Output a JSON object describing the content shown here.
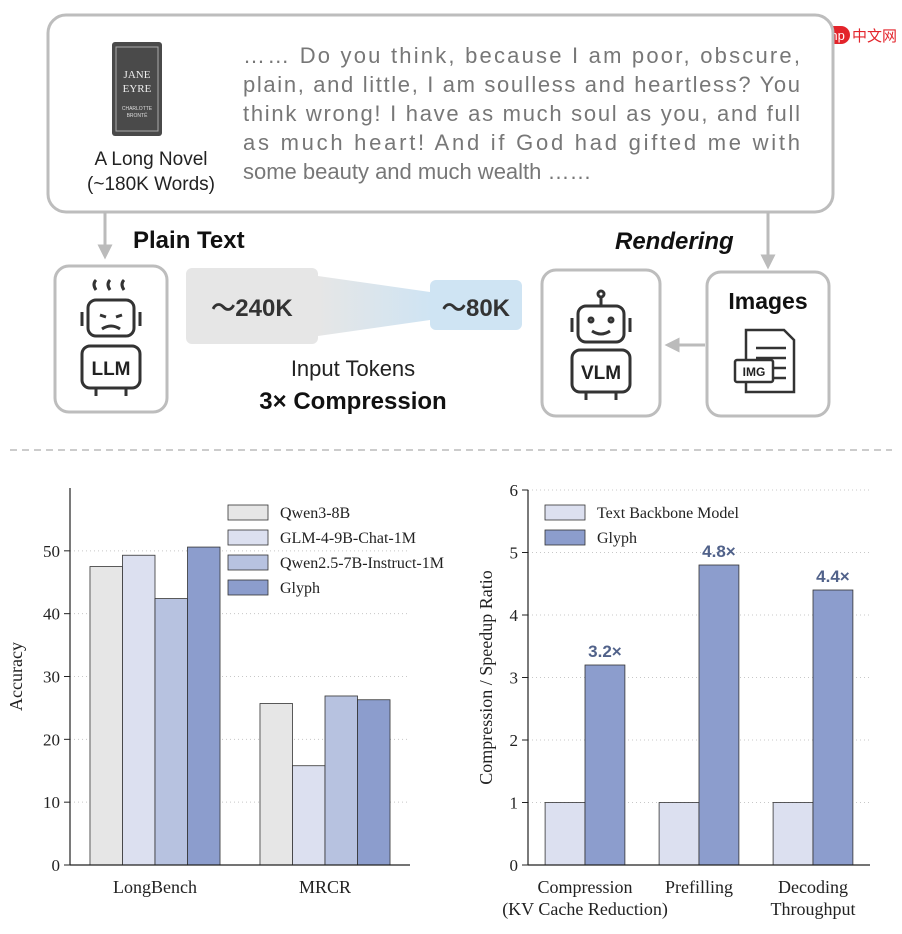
{
  "watermark": {
    "badge": "php",
    "text": "中文网"
  },
  "diagram": {
    "book_cover": {
      "title": [
        "JANE",
        "EYRE"
      ],
      "author": [
        "CHARLOTTE",
        "BRONTË"
      ]
    },
    "book_caption": [
      "A Long Novel",
      "(~180K Words)"
    ],
    "passage": [
      "…… Do you think, because I am poor, obscure,",
      "plain, and little, I am soulless and heartless? You",
      "think wrong! I have as much soul as you, and full",
      "as much heart! And if God had gifted me with",
      "some beauty and much wealth ……"
    ],
    "plain_text": "Plain Text",
    "rendering": "Rendering",
    "llm": "LLM",
    "vlm": "VLM",
    "images": "Images",
    "img": "IMG",
    "tokens_before": "～240K",
    "tokens_after": "～80K",
    "input_tokens": "Input Tokens",
    "compression": "3× Compression"
  },
  "chart_data": [
    {
      "type": "bar",
      "y_label": "Accuracy",
      "categories": [
        "LongBench",
        "MRCR"
      ],
      "series": [
        {
          "name": "Qwen3-8B",
          "color": "#e6e6e6",
          "values": [
            47.5,
            25.7
          ]
        },
        {
          "name": "GLM-4-9B-Chat-1M",
          "color": "#dce0f0",
          "values": [
            49.3,
            15.8
          ]
        },
        {
          "name": "Qwen2.5-7B-Instruct-1M",
          "color": "#b7c2e0",
          "values": [
            42.4,
            26.9
          ]
        },
        {
          "name": "Glyph",
          "color": "#8c9dcd",
          "values": [
            50.6,
            26.3
          ]
        }
      ],
      "ylim": [
        0,
        60
      ],
      "yticks": [
        0,
        10,
        20,
        30,
        40,
        50
      ],
      "grid": true,
      "legend_position": "upper right"
    },
    {
      "type": "bar",
      "y_label": "Compression / Speedup Ratio",
      "categories": [
        [
          "Compression",
          "(KV Cache Reduction)"
        ],
        [
          "Prefilling"
        ],
        [
          "Decoding",
          "Throughput"
        ]
      ],
      "series": [
        {
          "name": "Text Backbone Model",
          "color": "#dce0f0",
          "values": [
            1,
            1,
            1
          ]
        },
        {
          "name": "Glyph",
          "color": "#8c9dcd",
          "values": [
            3.2,
            4.8,
            4.4
          ],
          "value_labels": [
            "3.2×",
            "4.8×",
            "4.4×"
          ]
        }
      ],
      "ylim": [
        0,
        6
      ],
      "yticks": [
        0,
        1,
        2,
        3,
        4,
        5,
        6
      ],
      "grid": true,
      "legend_position": "upper left"
    }
  ]
}
